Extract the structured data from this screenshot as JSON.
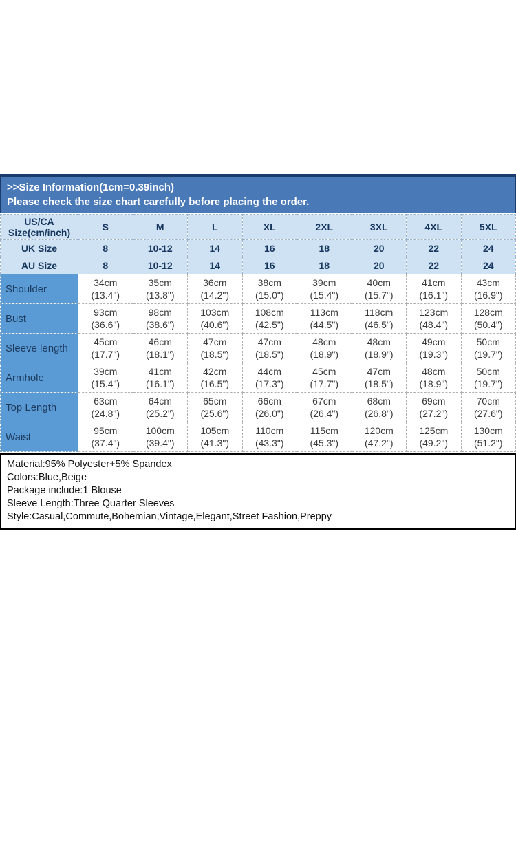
{
  "banner": {
    "line1": ">>Size Information(1cm=0.39inch)",
    "line2": "Please check the size chart carefully before placing the order."
  },
  "size_table": {
    "corner_label_lines": [
      "US/CA",
      "Size(cm/inch)"
    ],
    "sizes": [
      "S",
      "M",
      "L",
      "XL",
      "2XL",
      "3XL",
      "4XL",
      "5XL"
    ],
    "conversion_rows": [
      {
        "label": "UK Size",
        "values": [
          "8",
          "10-12",
          "14",
          "16",
          "18",
          "20",
          "22",
          "24"
        ]
      },
      {
        "label": "AU Size",
        "values": [
          "8",
          "10-12",
          "14",
          "16",
          "18",
          "20",
          "22",
          "24"
        ]
      }
    ],
    "measurement_rows": [
      {
        "label": "Shoulder",
        "cells": [
          [
            "34cm",
            "(13.4\")"
          ],
          [
            "35cm",
            "(13.8\")"
          ],
          [
            "36cm",
            "(14.2\")"
          ],
          [
            "38cm",
            "(15.0\")"
          ],
          [
            "39cm",
            "(15.4\")"
          ],
          [
            "40cm",
            "(15.7\")"
          ],
          [
            "41cm",
            "(16.1\")"
          ],
          [
            "43cm",
            "(16.9\")"
          ]
        ]
      },
      {
        "label": "Bust",
        "cells": [
          [
            "93cm",
            "(36.6\")"
          ],
          [
            "98cm",
            "(38.6\")"
          ],
          [
            "103cm",
            "(40.6\")"
          ],
          [
            "108cm",
            "(42.5\")"
          ],
          [
            "113cm",
            "(44.5\")"
          ],
          [
            "118cm",
            "(46.5\")"
          ],
          [
            "123cm",
            "(48.4\")"
          ],
          [
            "128cm",
            "(50.4\")"
          ]
        ]
      },
      {
        "label": "Sleeve length",
        "cells": [
          [
            "45cm",
            "(17.7\")"
          ],
          [
            "46cm",
            "(18.1\")"
          ],
          [
            "47cm",
            "(18.5\")"
          ],
          [
            "47cm",
            "(18.5\")"
          ],
          [
            "48cm",
            "(18.9\")"
          ],
          [
            "48cm",
            "(18.9\")"
          ],
          [
            "49cm",
            "(19.3\")"
          ],
          [
            "50cm",
            "(19.7\")"
          ]
        ]
      },
      {
        "label": "Armhole",
        "cells": [
          [
            "39cm",
            "(15.4\")"
          ],
          [
            "41cm",
            "(16.1\")"
          ],
          [
            "42cm",
            "(16.5\")"
          ],
          [
            "44cm",
            "(17.3\")"
          ],
          [
            "45cm",
            "(17.7\")"
          ],
          [
            "47cm",
            "(18.5\")"
          ],
          [
            "48cm",
            "(18.9\")"
          ],
          [
            "50cm",
            "(19.7\")"
          ]
        ]
      },
      {
        "label": "Top Length",
        "cells": [
          [
            "63cm",
            "(24.8\")"
          ],
          [
            "64cm",
            "(25.2\")"
          ],
          [
            "65cm",
            "(25.6\")"
          ],
          [
            "66cm",
            "(26.0\")"
          ],
          [
            "67cm",
            "(26.4\")"
          ],
          [
            "68cm",
            "(26.8\")"
          ],
          [
            "69cm",
            "(27.2\")"
          ],
          [
            "70cm",
            "(27.6\")"
          ]
        ]
      },
      {
        "label": "Waist",
        "cells": [
          [
            "95cm",
            "(37.4\")"
          ],
          [
            "100cm",
            "(39.4\")"
          ],
          [
            "105cm",
            "(41.3\")"
          ],
          [
            "110cm",
            "(43.3\")"
          ],
          [
            "115cm",
            "(45.3\")"
          ],
          [
            "120cm",
            "(47.2\")"
          ],
          [
            "125cm",
            "(49.2\")"
          ],
          [
            "130cm",
            "(51.2\")"
          ]
        ]
      }
    ]
  },
  "product_info": {
    "lines": [
      "Material:95% Polyester+5% Spandex",
      "Colors:Blue,Beige",
      "Package include:1 Blouse",
      "Sleeve Length:Three Quarter Sleeves",
      "Style:Casual,Commute,Bohemian,Vintage,Elegant,Street Fashion,Preppy"
    ]
  },
  "colors": {
    "banner_bg": "#4a79b8",
    "banner_border": "#1d3c6e",
    "banner_text": "#ffffff",
    "header_bg": "#cfe2f4",
    "header_text": "#17375e",
    "label_column_bg": "#5b9bd5",
    "label_text": "#1c3a5e",
    "value_text": "#3a3a3a",
    "info_border": "#000000"
  }
}
